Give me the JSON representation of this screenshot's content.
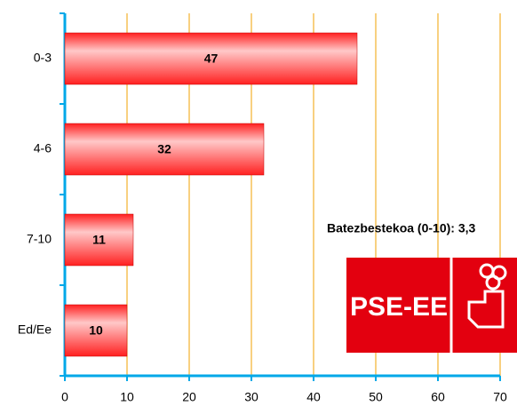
{
  "chart_data": {
    "type": "bar",
    "orientation": "horizontal",
    "categories": [
      "0-3",
      "4-6",
      "7-10",
      "Ed/Ee"
    ],
    "values": [
      47,
      32,
      11,
      10
    ],
    "color": "#ff2020",
    "xlim": [
      0,
      70
    ],
    "xticks": [
      0,
      10,
      20,
      30,
      40,
      50,
      60,
      70
    ],
    "grid": true,
    "grid_color": "#f0a000",
    "axis_color": "#00a8e8",
    "annotation": "Batezbestekoa (0-10): 3,3",
    "logo_text": "PSE-EE"
  }
}
